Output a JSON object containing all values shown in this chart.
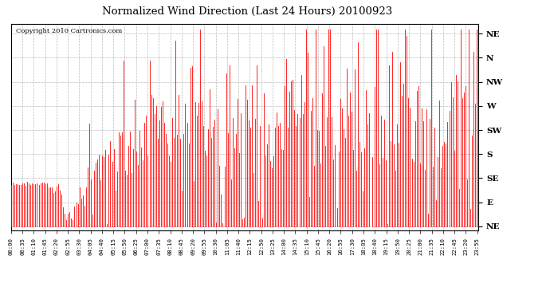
{
  "title": "Normalized Wind Direction (Last 24 Hours) 20100923",
  "copyright": "Copyright 2010 Cartronics.com",
  "line_color": "#ff0000",
  "bg_color": "#ffffff",
  "grid_color": "#bbbbbb",
  "ytick_labels": [
    "NE",
    "N",
    "NW",
    "W",
    "SW",
    "S",
    "SE",
    "E",
    "NE"
  ],
  "ytick_values": [
    1.0,
    0.875,
    0.75,
    0.625,
    0.5,
    0.375,
    0.25,
    0.125,
    0.0
  ],
  "ylim": [
    -0.02,
    1.05
  ],
  "seed": 12345,
  "n_points": 288,
  "figsize": [
    6.9,
    3.75
  ],
  "dpi": 100
}
